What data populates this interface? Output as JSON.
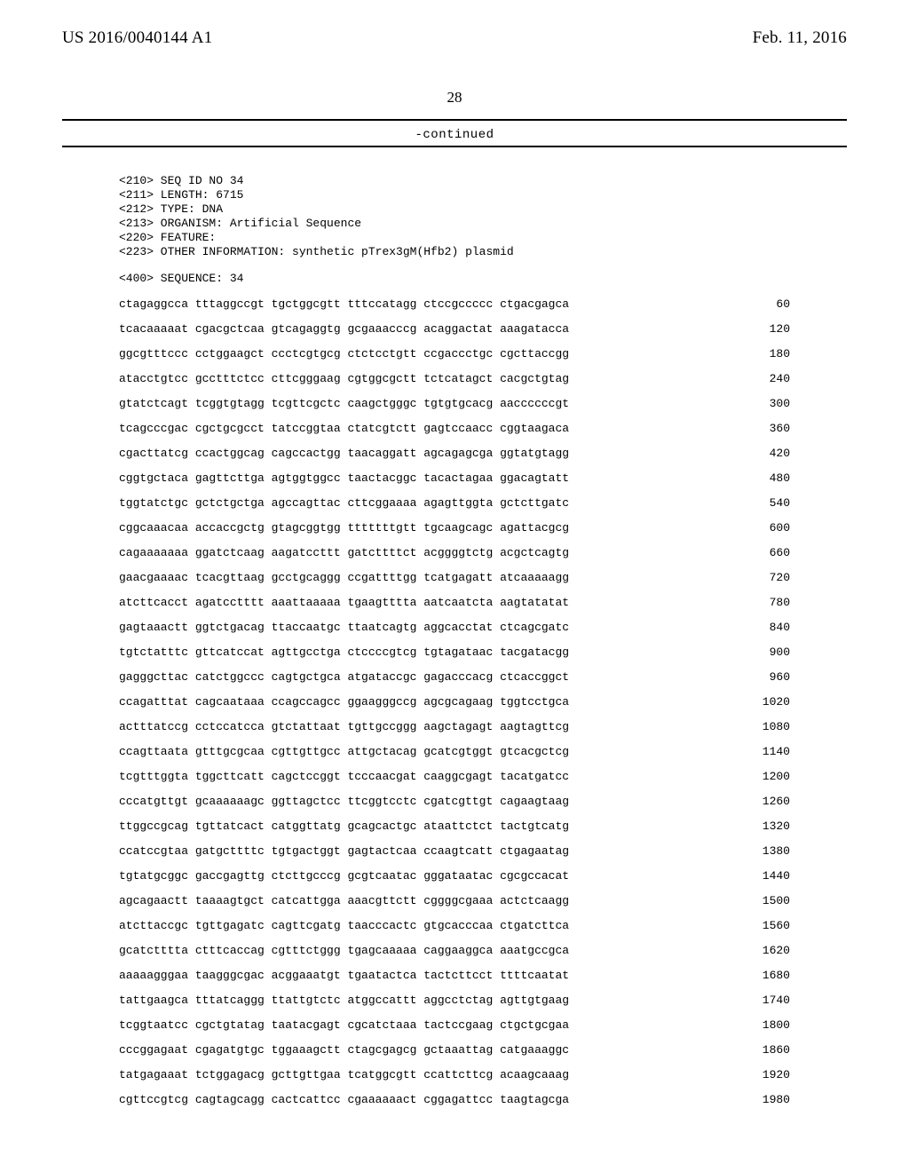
{
  "header": {
    "left": "US 2016/0040144 A1",
    "right": "Feb. 11, 2016"
  },
  "page_number": "28",
  "continued": "-continued",
  "meta": [
    "<210> SEQ ID NO 34",
    "<211> LENGTH: 6715",
    "<212> TYPE: DNA",
    "<213> ORGANISM: Artificial Sequence",
    "<220> FEATURE:",
    "<223> OTHER INFORMATION: synthetic pTrex3gM(Hfb2) plasmid"
  ],
  "sequence_label": "<400> SEQUENCE: 34",
  "rows": [
    {
      "seq": "ctagaggcca tttaggccgt tgctggcgtt tttccatagg ctccgccccc ctgacgagca",
      "n": "60"
    },
    {
      "seq": "tcacaaaaat cgacgctcaa gtcagaggtg gcgaaacccg acaggactat aaagatacca",
      "n": "120"
    },
    {
      "seq": "ggcgtttccc cctggaagct ccctcgtgcg ctctcctgtt ccgaccctgc cgcttaccgg",
      "n": "180"
    },
    {
      "seq": "atacctgtcc gcctttctcc cttcgggaag cgtggcgctt tctcatagct cacgctgtag",
      "n": "240"
    },
    {
      "seq": "gtatctcagt tcggtgtagg tcgttcgctc caagctgggc tgtgtgcacg aaccccccgt",
      "n": "300"
    },
    {
      "seq": "tcagcccgac cgctgcgcct tatccggtaa ctatcgtctt gagtccaacc cggtaagaca",
      "n": "360"
    },
    {
      "seq": "cgacttatcg ccactggcag cagccactgg taacaggatt agcagagcga ggtatgtagg",
      "n": "420"
    },
    {
      "seq": "cggtgctaca gagttcttga agtggtggcc taactacggc tacactagaa ggacagtatt",
      "n": "480"
    },
    {
      "seq": "tggtatctgc gctctgctga agccagttac cttcggaaaa agagttggta gctcttgatc",
      "n": "540"
    },
    {
      "seq": "cggcaaacaa accaccgctg gtagcggtgg tttttttgtt tgcaagcagc agattacgcg",
      "n": "600"
    },
    {
      "seq": "cagaaaaaaa ggatctcaag aagatccttt gatcttttct acggggtctg acgctcagtg",
      "n": "660"
    },
    {
      "seq": "gaacgaaaac tcacgttaag gcctgcaggg ccgattttgg tcatgagatt atcaaaaagg",
      "n": "720"
    },
    {
      "seq": "atcttcacct agatcctttt aaattaaaaa tgaagtttta aatcaatcta aagtatatat",
      "n": "780"
    },
    {
      "seq": "gagtaaactt ggtctgacag ttaccaatgc ttaatcagtg aggcacctat ctcagcgatc",
      "n": "840"
    },
    {
      "seq": "tgtctatttc gttcatccat agttgcctga ctccccgtcg tgtagataac tacgatacgg",
      "n": "900"
    },
    {
      "seq": "gagggcttac catctggccc cagtgctgca atgataccgc gagacccacg ctcaccggct",
      "n": "960"
    },
    {
      "seq": "ccagatttat cagcaataaa ccagccagcc ggaagggccg agcgcagaag tggtcctgca",
      "n": "1020"
    },
    {
      "seq": "actttatccg cctccatcca gtctattaat tgttgccggg aagctagagt aagtagttcg",
      "n": "1080"
    },
    {
      "seq": "ccagttaata gtttgcgcaa cgttgttgcc attgctacag gcatcgtggt gtcacgctcg",
      "n": "1140"
    },
    {
      "seq": "tcgtttggta tggcttcatt cagctccggt tcccaacgat caaggcgagt tacatgatcc",
      "n": "1200"
    },
    {
      "seq": "cccatgttgt gcaaaaaagc ggttagctcc ttcggtcctc cgatcgttgt cagaagtaag",
      "n": "1260"
    },
    {
      "seq": "ttggccgcag tgttatcact catggttatg gcagcactgc ataattctct tactgtcatg",
      "n": "1320"
    },
    {
      "seq": "ccatccgtaa gatgcttttc tgtgactggt gagtactcaa ccaagtcatt ctgagaatag",
      "n": "1380"
    },
    {
      "seq": "tgtatgcggc gaccgagttg ctcttgcccg gcgtcaatac gggataatac cgcgccacat",
      "n": "1440"
    },
    {
      "seq": "agcagaactt taaaagtgct catcattgga aaacgttctt cggggcgaaa actctcaagg",
      "n": "1500"
    },
    {
      "seq": "atcttaccgc tgttgagatc cagttcgatg taacccactc gtgcacccaa ctgatcttca",
      "n": "1560"
    },
    {
      "seq": "gcatctttta ctttcaccag cgtttctggg tgagcaaaaa caggaaggca aaatgccgca",
      "n": "1620"
    },
    {
      "seq": "aaaaagggaa taagggcgac acggaaatgt tgaatactca tactcttcct ttttcaatat",
      "n": "1680"
    },
    {
      "seq": "tattgaagca tttatcaggg ttattgtctc atggccattt aggcctctag agttgtgaag",
      "n": "1740"
    },
    {
      "seq": "tcggtaatcc cgctgtatag taatacgagt cgcatctaaa tactccgaag ctgctgcgaa",
      "n": "1800"
    },
    {
      "seq": "cccggagaat cgagatgtgc tggaaagctt ctagcgagcg gctaaattag catgaaaggc",
      "n": "1860"
    },
    {
      "seq": "tatgagaaat tctggagacg gcttgttgaa tcatggcgtt ccattcttcg acaagcaaag",
      "n": "1920"
    },
    {
      "seq": "cgttccgtcg cagtagcagg cactcattcc cgaaaaaact cggagattcc taagtagcga",
      "n": "1980"
    }
  ]
}
